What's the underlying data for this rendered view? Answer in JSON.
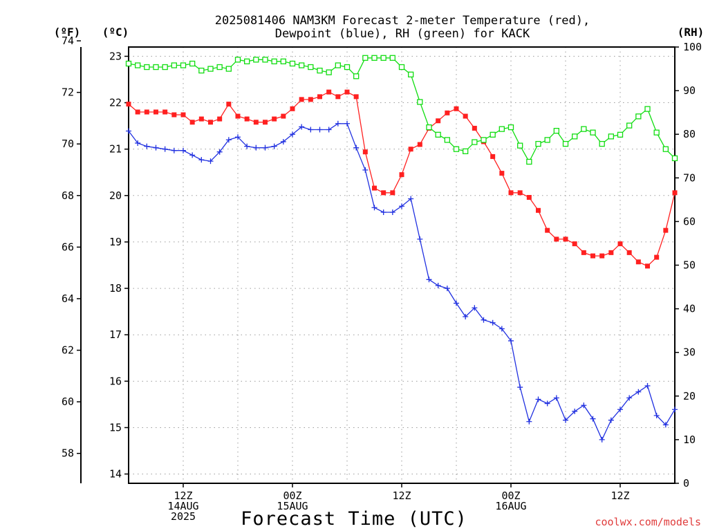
{
  "chart_data": {
    "type": "line",
    "title_line1": "2025081406 NAM3KM Forecast 2-meter Temperature (red),",
    "title_line2": "Dewpoint (blue), RH (green) for KACK",
    "xlabel": "Forecast Time (UTC)",
    "credit": "coolwx.com/models",
    "units": {
      "fahrenheit": "(ºF)",
      "celsius": "(ºC)",
      "rh": "(RH)"
    },
    "x_start_hour": 6,
    "x_end_hour": 66,
    "x_ticks": [
      {
        "hour": 12,
        "lines": [
          "12Z",
          "14AUG",
          "2025"
        ]
      },
      {
        "hour": 24,
        "lines": [
          "00Z",
          "15AUG"
        ]
      },
      {
        "hour": 36,
        "lines": [
          "12Z"
        ]
      },
      {
        "hour": 48,
        "lines": [
          "00Z",
          "16AUG"
        ]
      },
      {
        "hour": 60,
        "lines": [
          "12Z"
        ]
      }
    ],
    "celsius_axis": {
      "min": 13.8,
      "max": 23.2,
      "ticks": [
        14,
        15,
        16,
        17,
        18,
        19,
        20,
        21,
        22,
        23
      ]
    },
    "fahrenheit_axis": {
      "ticks": [
        58,
        60,
        62,
        64,
        66,
        68,
        70,
        72,
        74
      ]
    },
    "rh_axis": {
      "min": 0,
      "max": 100,
      "ticks": [
        0,
        10,
        20,
        30,
        40,
        50,
        60,
        70,
        80,
        90,
        100
      ]
    },
    "series": [
      {
        "key": "temperature",
        "axis": "celsius",
        "color": "#ff2020",
        "marker": "filled-square",
        "values": [
          21.97,
          21.8,
          21.8,
          21.8,
          21.8,
          21.74,
          21.74,
          21.58,
          21.65,
          21.58,
          21.65,
          21.97,
          21.71,
          21.65,
          21.58,
          21.58,
          21.65,
          21.71,
          21.87,
          22.07,
          22.07,
          22.13,
          22.23,
          22.13,
          22.23,
          22.13,
          20.94,
          20.16,
          20.06,
          20.06,
          20.45,
          21.0,
          21.1,
          21.45,
          21.61,
          21.78,
          21.87,
          21.71,
          21.45,
          21.16,
          20.84,
          20.48,
          20.06,
          20.06,
          19.96,
          19.68,
          19.25,
          19.06,
          19.06,
          18.96,
          18.77,
          18.7,
          18.7,
          18.77,
          18.96,
          18.77,
          18.57,
          18.48,
          18.67,
          19.25,
          20.06
        ]
      },
      {
        "key": "dewpoint",
        "axis": "celsius",
        "color": "#2030e0",
        "marker": "plus",
        "values": [
          21.39,
          21.13,
          21.06,
          21.03,
          21.0,
          20.97,
          20.97,
          20.87,
          20.77,
          20.74,
          20.94,
          21.2,
          21.26,
          21.06,
          21.03,
          21.03,
          21.06,
          21.16,
          21.32,
          21.48,
          21.42,
          21.42,
          21.42,
          21.55,
          21.55,
          21.03,
          20.55,
          19.74,
          19.64,
          19.64,
          19.77,
          19.93,
          19.06,
          18.19,
          18.06,
          18.0,
          17.68,
          17.39,
          17.58,
          17.32,
          17.26,
          17.13,
          16.87,
          15.87,
          15.13,
          15.61,
          15.52,
          15.64,
          15.16,
          15.35,
          15.48,
          15.19,
          14.74,
          15.16,
          15.39,
          15.64,
          15.77,
          15.9,
          15.26,
          15.06,
          15.39
        ]
      },
      {
        "key": "rh",
        "axis": "rh",
        "color": "#10dd10",
        "marker": "open-square",
        "values": [
          96.2,
          95.8,
          95.4,
          95.4,
          95.4,
          95.8,
          95.8,
          96.2,
          94.6,
          95.0,
          95.4,
          95.0,
          97.1,
          96.7,
          97.1,
          97.1,
          96.7,
          96.7,
          96.2,
          95.8,
          95.4,
          94.6,
          94.2,
          95.8,
          95.4,
          93.3,
          97.5,
          97.5,
          97.5,
          97.5,
          95.4,
          93.7,
          87.4,
          81.6,
          79.9,
          78.7,
          76.6,
          76.1,
          78.2,
          78.7,
          79.9,
          81.2,
          81.6,
          77.4,
          73.7,
          77.8,
          78.7,
          80.8,
          77.8,
          79.5,
          81.2,
          80.4,
          77.8,
          79.5,
          79.9,
          82.0,
          84.1,
          85.8,
          80.4,
          76.6,
          74.5
        ]
      }
    ]
  }
}
